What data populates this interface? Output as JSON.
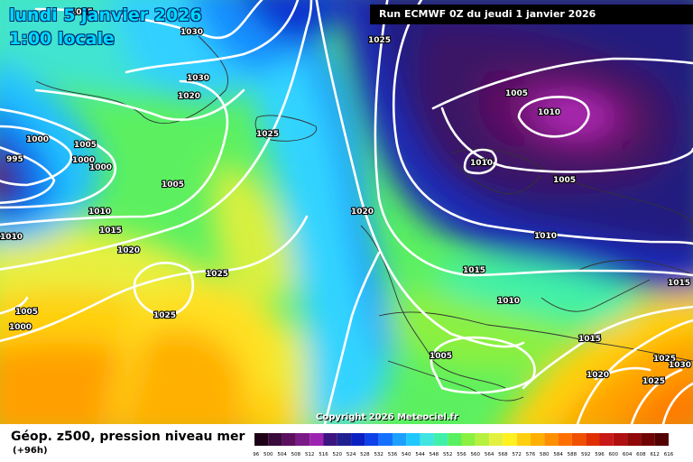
{
  "header": {
    "date_line": "lundi 5 janvier 2026",
    "time_line": "1:00 locale",
    "run_label": "Run ECMWF 0Z du jeudi 1 janvier 2026"
  },
  "footer": {
    "title": "Géop. z500, pression niveau mer",
    "lead_time": "(+96h)",
    "copyright": "Copyright 2026 Meteociel.fr"
  },
  "scale": {
    "values": [
      "496",
      "500",
      "504",
      "508",
      "512",
      "516",
      "520",
      "524",
      "528",
      "532",
      "536",
      "540",
      "544",
      "548",
      "552",
      "556",
      "560",
      "564",
      "568",
      "572",
      "576",
      "580",
      "584",
      "588",
      "592",
      "596",
      "600",
      "604",
      "608",
      "612",
      "616"
    ],
    "colors": [
      "#1c0016",
      "#3a0a3a",
      "#5c0f5e",
      "#7a1a86",
      "#9c24b0",
      "#3c1580",
      "#1f1f8f",
      "#0a20c0",
      "#1040e8",
      "#1470ff",
      "#1ea0ff",
      "#20c8ff",
      "#40e4e0",
      "#40f0a8",
      "#58f060",
      "#8cf040",
      "#b8f040",
      "#e4f040",
      "#fff020",
      "#ffd010",
      "#ffb000",
      "#ff9000",
      "#ff7000",
      "#f05000",
      "#e03000",
      "#c81818",
      "#b01010",
      "#900808",
      "#700404",
      "#540000"
    ]
  },
  "isobar_labels": [
    {
      "id": "l1",
      "text": "1025"
    },
    {
      "id": "l2",
      "text": "1030"
    },
    {
      "id": "l3",
      "text": "1030"
    },
    {
      "id": "l4",
      "text": "1020"
    },
    {
      "id": "l5",
      "text": "1025"
    },
    {
      "id": "l6",
      "text": "1000"
    },
    {
      "id": "l7",
      "text": "995"
    },
    {
      "id": "l8",
      "text": "1005"
    },
    {
      "id": "l9",
      "text": "1000"
    },
    {
      "id": "l10",
      "text": "1000"
    },
    {
      "id": "l11",
      "text": "1005"
    },
    {
      "id": "l12",
      "text": "1010"
    },
    {
      "id": "l13",
      "text": "1015"
    },
    {
      "id": "l14",
      "text": "1010"
    },
    {
      "id": "l15",
      "text": "1020"
    },
    {
      "id": "l16",
      "text": "1025"
    },
    {
      "id": "l17",
      "text": "1025"
    },
    {
      "id": "l18",
      "text": "1005"
    },
    {
      "id": "l19",
      "text": "1000"
    },
    {
      "id": "l20",
      "text": "1025"
    },
    {
      "id": "l21",
      "text": "1005"
    },
    {
      "id": "l22",
      "text": "1010"
    },
    {
      "id": "l23",
      "text": "1010"
    },
    {
      "id": "l24",
      "text": "1005"
    },
    {
      "id": "l25",
      "text": "1020"
    },
    {
      "id": "l26",
      "text": "1010"
    },
    {
      "id": "l27",
      "text": "1015"
    },
    {
      "id": "l28",
      "text": "1010"
    },
    {
      "id": "l29",
      "text": "1015"
    },
    {
      "id": "l30",
      "text": "1005"
    },
    {
      "id": "l31",
      "text": "1015"
    },
    {
      "id": "l32",
      "text": "1020"
    },
    {
      "id": "l33",
      "text": "1025"
    },
    {
      "id": "l34",
      "text": "1030"
    },
    {
      "id": "l35",
      "text": "1025"
    }
  ]
}
